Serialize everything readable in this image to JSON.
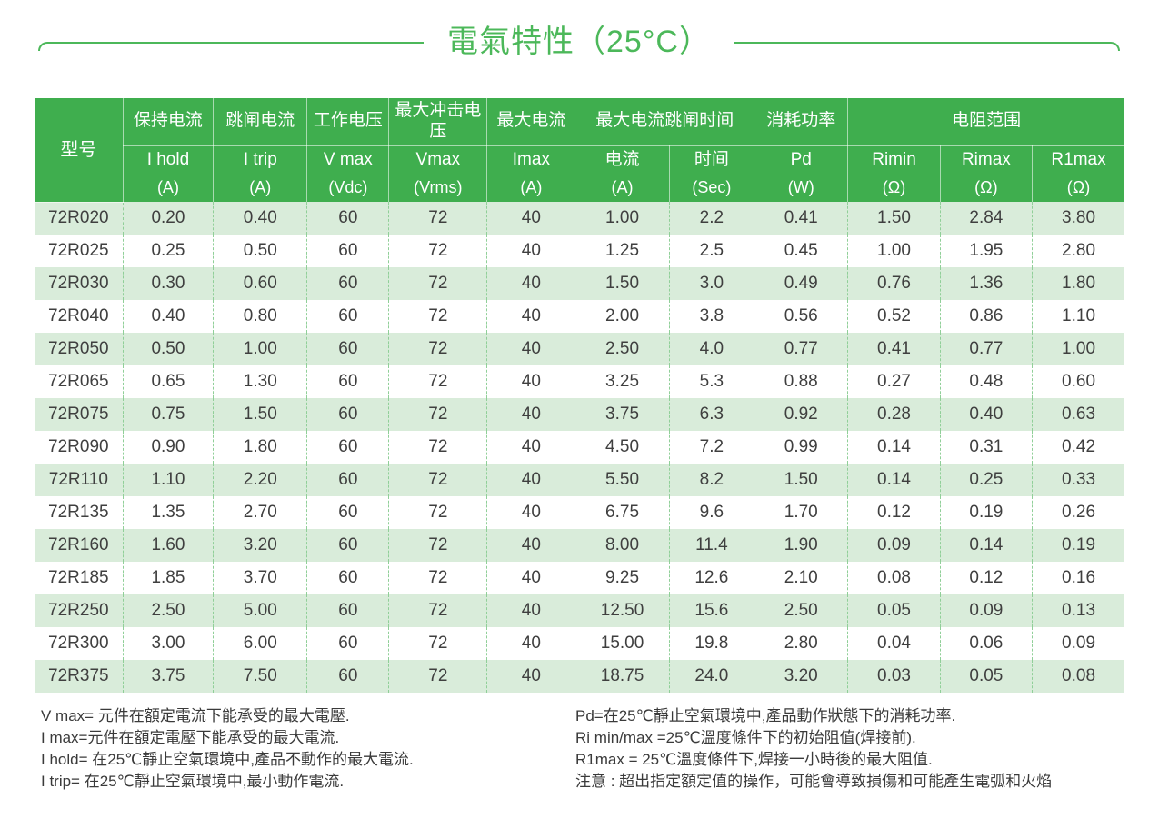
{
  "title": "電氣特性（25°C）",
  "colors": {
    "header_green": "#3fae4e",
    "title_green": "#4cb85a",
    "row_alt_green": "#d9ecda",
    "dash_line_green": "#90cf98",
    "body_text": "#3f3f3f"
  },
  "table": {
    "header": {
      "model": "型号",
      "top": [
        {
          "label": "保持电流"
        },
        {
          "label": "跳闸电流"
        },
        {
          "label": "工作电压"
        },
        {
          "label": "最大冲击电压"
        },
        {
          "label": "最大电流"
        },
        {
          "label": "最大电流跳闸时间"
        },
        {
          "label": "消耗功率"
        },
        {
          "label": "电阻范围"
        }
      ],
      "symbols": [
        "I hold",
        "I trip",
        "V max",
        "Vmax",
        "Imax",
        "电流",
        "时间",
        "Pd",
        "Rimin",
        "Rimax",
        "R1max"
      ],
      "units": [
        "(A)",
        "(A)",
        "(Vdc)",
        "(Vrms)",
        "(A)",
        "(A)",
        "(Sec)",
        "(W)",
        "(Ω)",
        "(Ω)",
        "(Ω)"
      ]
    },
    "rows": [
      {
        "model": "72R020",
        "values": [
          "0.20",
          "0.40",
          "60",
          "72",
          "40",
          "1.00",
          "2.2",
          "0.41",
          "1.50",
          "2.84",
          "3.80"
        ]
      },
      {
        "model": "72R025",
        "values": [
          "0.25",
          "0.50",
          "60",
          "72",
          "40",
          "1.25",
          "2.5",
          "0.45",
          "1.00",
          "1.95",
          "2.80"
        ]
      },
      {
        "model": "72R030",
        "values": [
          "0.30",
          "0.60",
          "60",
          "72",
          "40",
          "1.50",
          "3.0",
          "0.49",
          "0.76",
          "1.36",
          "1.80"
        ]
      },
      {
        "model": "72R040",
        "values": [
          "0.40",
          "0.80",
          "60",
          "72",
          "40",
          "2.00",
          "3.8",
          "0.56",
          "0.52",
          "0.86",
          "1.10"
        ]
      },
      {
        "model": "72R050",
        "values": [
          "0.50",
          "1.00",
          "60",
          "72",
          "40",
          "2.50",
          "4.0",
          "0.77",
          "0.41",
          "0.77",
          "1.00"
        ]
      },
      {
        "model": "72R065",
        "values": [
          "0.65",
          "1.30",
          "60",
          "72",
          "40",
          "3.25",
          "5.3",
          "0.88",
          "0.27",
          "0.48",
          "0.60"
        ]
      },
      {
        "model": "72R075",
        "values": [
          "0.75",
          "1.50",
          "60",
          "72",
          "40",
          "3.75",
          "6.3",
          "0.92",
          "0.28",
          "0.40",
          "0.63"
        ]
      },
      {
        "model": "72R090",
        "values": [
          "0.90",
          "1.80",
          "60",
          "72",
          "40",
          "4.50",
          "7.2",
          "0.99",
          "0.14",
          "0.31",
          "0.42"
        ]
      },
      {
        "model": "72R110",
        "values": [
          "1.10",
          "2.20",
          "60",
          "72",
          "40",
          "5.50",
          "8.2",
          "1.50",
          "0.14",
          "0.25",
          "0.33"
        ]
      },
      {
        "model": "72R135",
        "values": [
          "1.35",
          "2.70",
          "60",
          "72",
          "40",
          "6.75",
          "9.6",
          "1.70",
          "0.12",
          "0.19",
          "0.26"
        ]
      },
      {
        "model": "72R160",
        "values": [
          "1.60",
          "3.20",
          "60",
          "72",
          "40",
          "8.00",
          "11.4",
          "1.90",
          "0.09",
          "0.14",
          "0.19"
        ]
      },
      {
        "model": "72R185",
        "values": [
          "1.85",
          "3.70",
          "60",
          "72",
          "40",
          "9.25",
          "12.6",
          "2.10",
          "0.08",
          "0.12",
          "0.16"
        ]
      },
      {
        "model": "72R250",
        "values": [
          "2.50",
          "5.00",
          "60",
          "72",
          "40",
          "12.50",
          "15.6",
          "2.50",
          "0.05",
          "0.09",
          "0.13"
        ]
      },
      {
        "model": "72R300",
        "values": [
          "3.00",
          "6.00",
          "60",
          "72",
          "40",
          "15.00",
          "19.8",
          "2.80",
          "0.04",
          "0.06",
          "0.09"
        ]
      },
      {
        "model": "72R375",
        "values": [
          "3.75",
          "7.50",
          "60",
          "72",
          "40",
          "18.75",
          "24.0",
          "3.20",
          "0.03",
          "0.05",
          "0.08"
        ]
      }
    ]
  },
  "notes": {
    "left": [
      "V max= 元件在額定電流下能承受的最大電壓.",
      "I max=元件在額定電壓下能承受的最大電流.",
      "I hold= 在25℃靜止空氣環境中,產品不動作的最大電流.",
      "I trip= 在25℃靜止空氣環境中,最小動作電流."
    ],
    "right": [
      "Pd=在25℃靜止空氣環境中,產品動作狀態下的消耗功率.",
      "Ri min/max  =25℃溫度條件下的初始阻值(焊接前).",
      "R1max  = 25℃溫度條件下,焊接一小時後的最大阻值.",
      "注意 : 超出指定額定值的操作，可能會導致損傷和可能產生電弧和火焰"
    ]
  }
}
